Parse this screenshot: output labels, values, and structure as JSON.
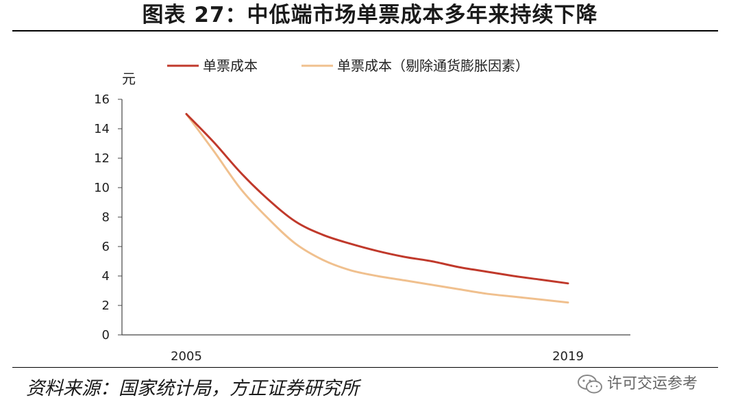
{
  "title": "图表 27：中低端市场单票成本多年来持续下降",
  "source": "资料来源：国家统计局，方正证券研究所",
  "watermark": "许可交运参考",
  "chart_data": {
    "type": "line",
    "unit_label": "元",
    "x_ticks": [
      "2005",
      "2019"
    ],
    "x": [
      2005,
      2006,
      2007,
      2008,
      2009,
      2010,
      2011,
      2012,
      2013,
      2014,
      2015,
      2016,
      2017,
      2018,
      2019
    ],
    "ylim": [
      0,
      16
    ],
    "y_ticks": [
      0,
      2,
      4,
      6,
      8,
      10,
      12,
      14,
      16
    ],
    "grid": false,
    "legend_position": "top",
    "series": [
      {
        "name": "单票成本",
        "color": "#c0392b",
        "values": [
          15.0,
          13.1,
          11.0,
          9.2,
          7.7,
          6.8,
          6.2,
          5.7,
          5.3,
          5.0,
          4.6,
          4.3,
          4.0,
          3.75,
          3.5
        ]
      },
      {
        "name": "单票成本（剔除通货膨胀因素）",
        "color": "#f0c08e",
        "values": [
          15.0,
          12.5,
          9.9,
          7.9,
          6.2,
          5.1,
          4.4,
          4.0,
          3.7,
          3.4,
          3.1,
          2.8,
          2.6,
          2.4,
          2.2
        ]
      }
    ]
  }
}
